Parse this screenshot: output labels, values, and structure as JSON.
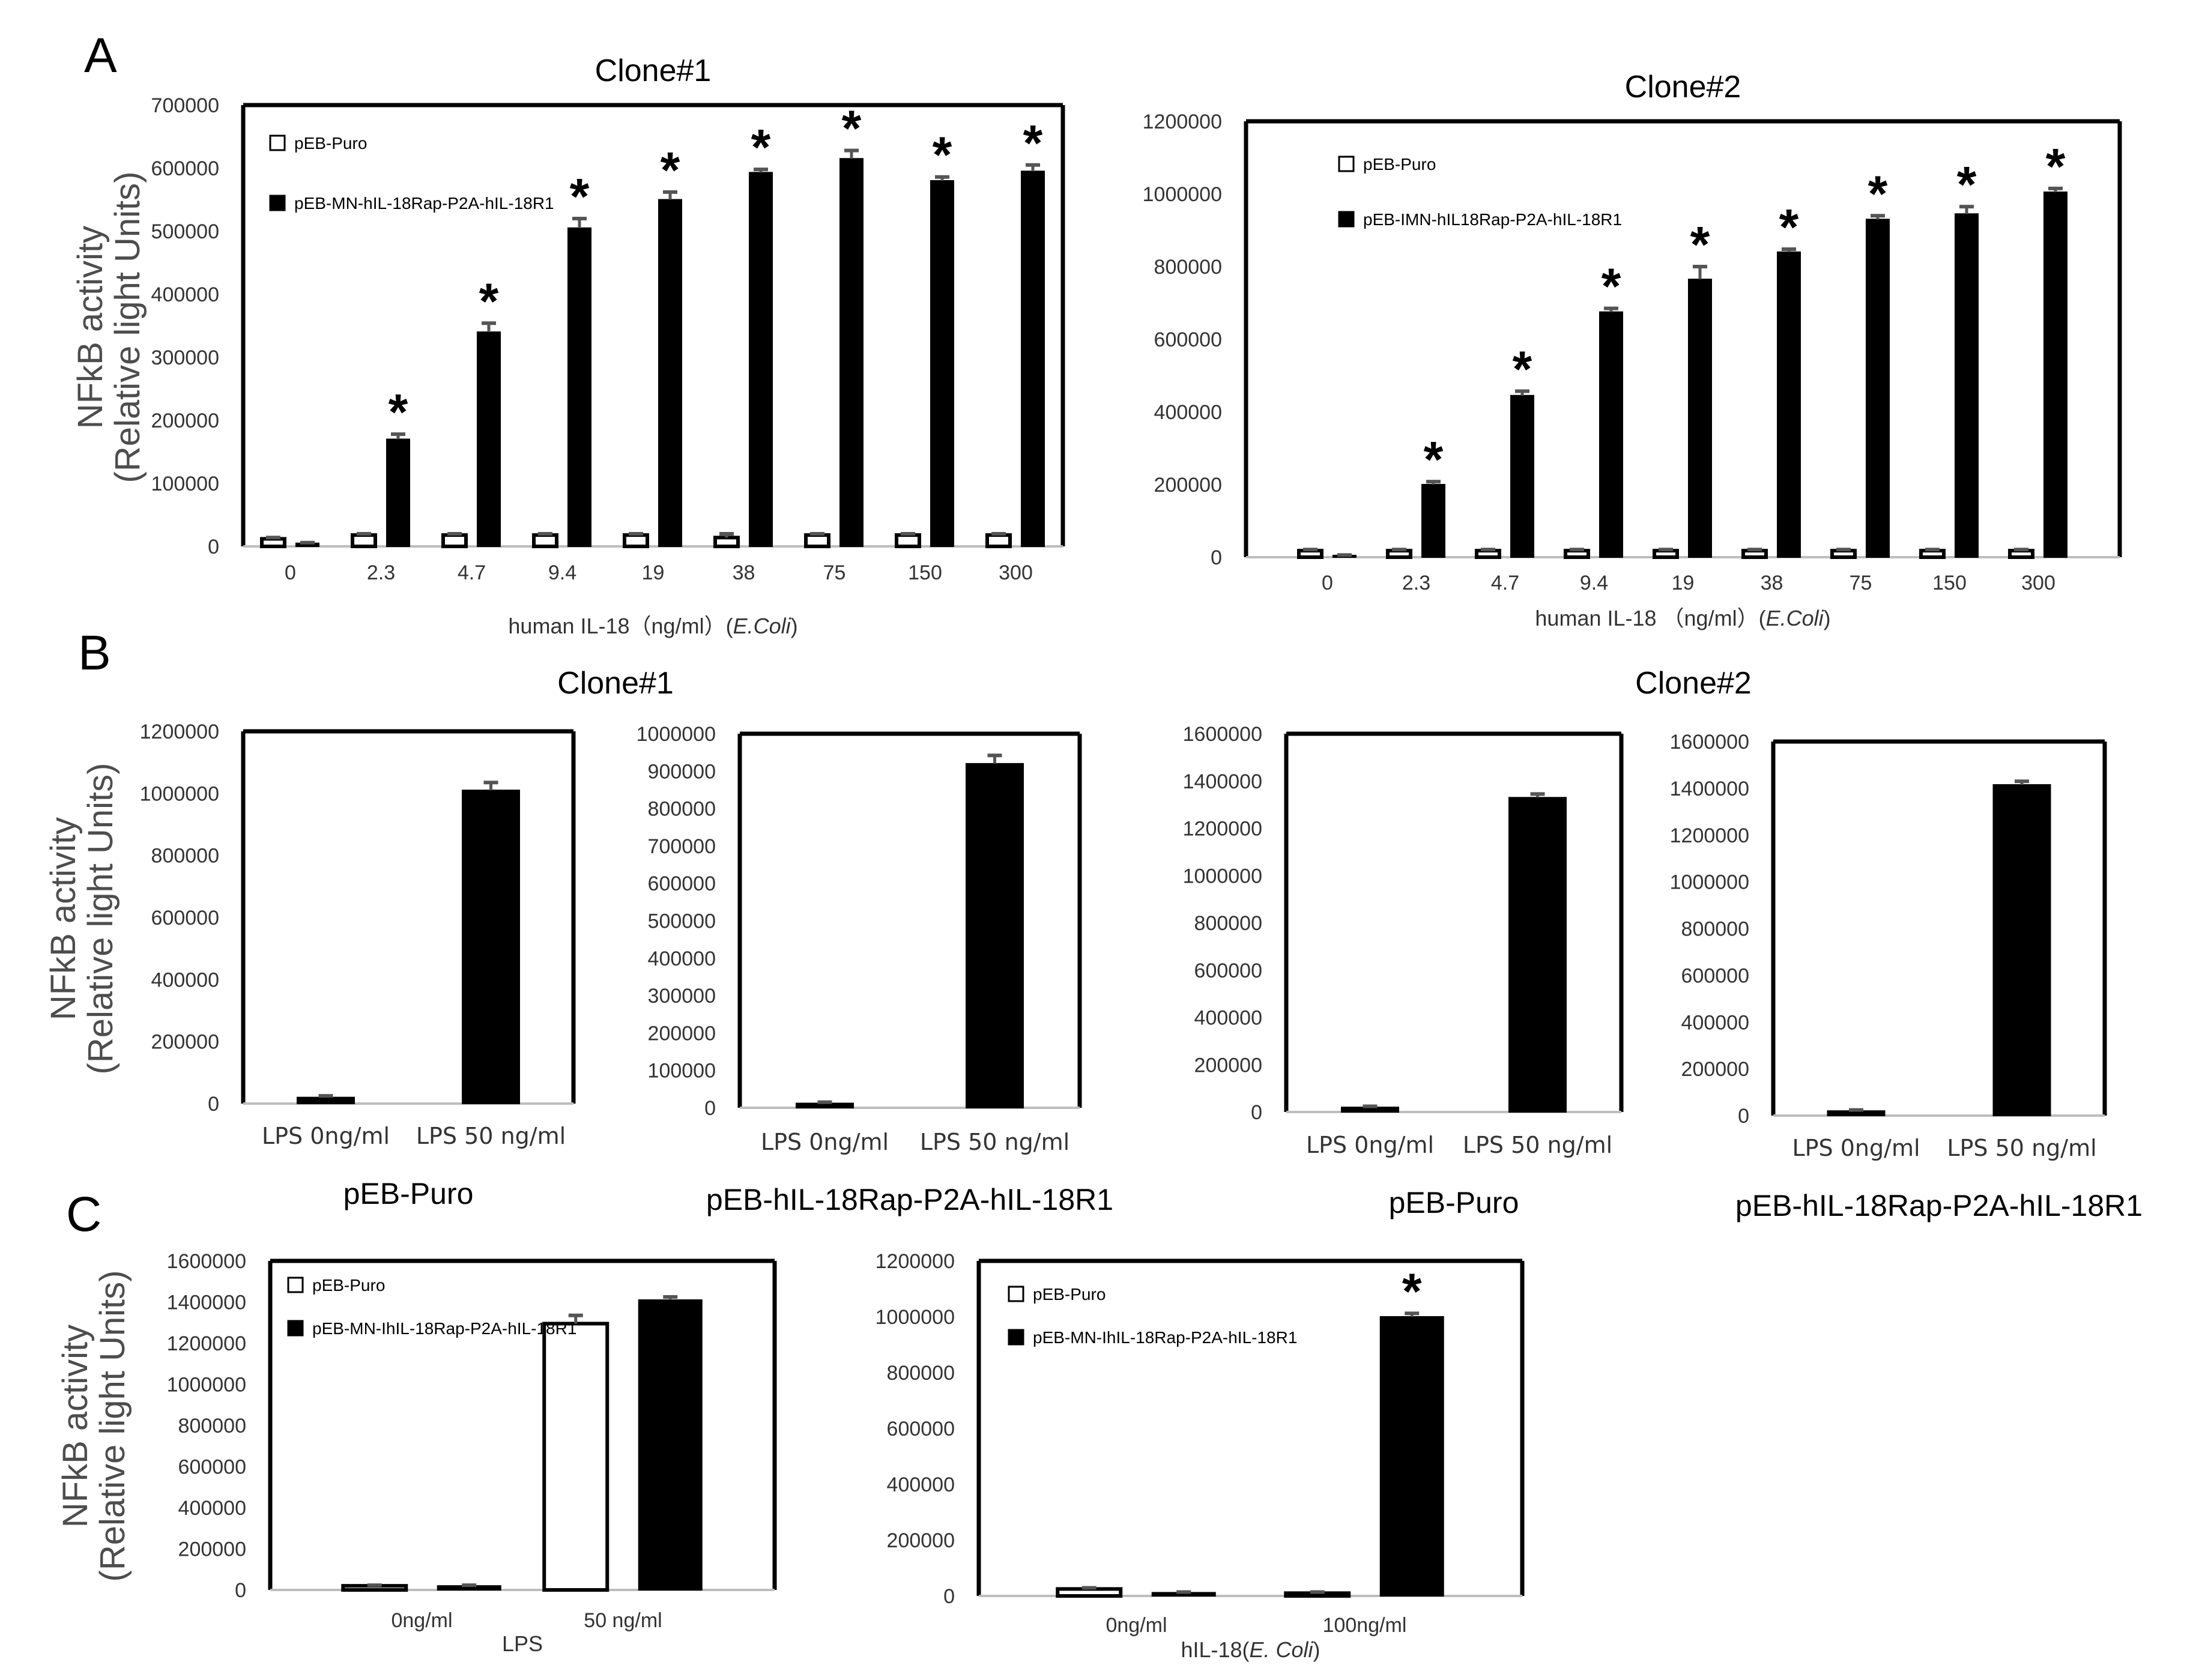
{
  "panel_labels": [
    "A",
    "B",
    "C"
  ],
  "colors": {
    "frame": "#000000",
    "filled": "#000000",
    "open": "#ffffff",
    "error": "#555555",
    "baseline": "#bdbdbd"
  },
  "shared_ylabel": {
    "line1": "NFkB activity",
    "line2": "(Relative light Units)"
  },
  "chart_data": [
    {
      "id": "A1",
      "type": "bar",
      "title": "Clone#1",
      "categories": [
        "0",
        "2.3",
        "4.7",
        "9.4",
        "19",
        "38",
        "75",
        "150",
        "300"
      ],
      "xlabel_parts": [
        "human  IL-18（ng/ml）(",
        "E.Coli",
        ")"
      ],
      "ylim": [
        0,
        700000
      ],
      "yticks": [
        "0",
        "100000",
        "200000",
        "300000",
        "400000",
        "500000",
        "600000",
        "700000"
      ],
      "series": [
        {
          "name": "pEB-Puro",
          "fill": "open",
          "values": [
            12000,
            18000,
            18000,
            18000,
            18000,
            14000,
            18000,
            18000,
            18000
          ],
          "err": [
            2000,
            2000,
            2000,
            2000,
            2000,
            6000,
            2000,
            2000,
            2000
          ]
        },
        {
          "name": "pEB-MN-hIL-18Rap-P2A-hIL-18R1",
          "fill": "filled",
          "values": [
            5000,
            170000,
            340000,
            505000,
            550000,
            593000,
            615000,
            580000,
            595000
          ],
          "err": [
            1000,
            8000,
            14000,
            15000,
            12000,
            5000,
            13000,
            6000,
            10000
          ]
        }
      ],
      "significant": [
        false,
        true,
        true,
        true,
        true,
        true,
        true,
        true,
        true
      ]
    },
    {
      "id": "A2",
      "type": "bar",
      "title": "Clone#2",
      "categories": [
        "0",
        "2.3",
        "4.7",
        "9.4",
        "19",
        "38",
        "75",
        "150",
        "300"
      ],
      "xlabel_parts": [
        "human  IL-18 （ng/ml）(",
        "E.Coli",
        ")"
      ],
      "ylim": [
        0,
        1200000
      ],
      "yticks": [
        "0",
        "200000",
        "400000",
        "600000",
        "800000",
        "1000000",
        "1200000"
      ],
      "series": [
        {
          "name": "pEB-Puro",
          "fill": "open",
          "values": [
            18000,
            18000,
            18000,
            18000,
            18000,
            18000,
            18000,
            18000,
            18000
          ],
          "err": [
            3000,
            3000,
            3000,
            3000,
            3000,
            3000,
            3000,
            3000,
            3000
          ]
        },
        {
          "name": "pEB-IMN-hIL18Rap-P2A-hIL-18R1",
          "fill": "filled",
          "values": [
            5000,
            200000,
            445000,
            675000,
            765000,
            840000,
            930000,
            945000,
            1005000
          ],
          "err": [
            1000,
            8000,
            12000,
            10000,
            35000,
            8000,
            10000,
            20000,
            10000
          ]
        }
      ],
      "significant": [
        false,
        true,
        true,
        true,
        true,
        true,
        true,
        true,
        true
      ]
    },
    {
      "id": "B1",
      "type": "bar",
      "group_title": "Clone#1",
      "caption": "pEB-Puro",
      "categories": [
        "LPS 0ng/ml",
        "LPS 50 ng/ml"
      ],
      "ylim": [
        0,
        1200000
      ],
      "yticks": [
        "0",
        "200000",
        "400000",
        "600000",
        "800000",
        "1000000",
        "1200000"
      ],
      "values": [
        20000,
        1010000
      ],
      "err": [
        5000,
        25000
      ]
    },
    {
      "id": "B2",
      "type": "bar",
      "caption": "pEB-hIL-18Rap-P2A-hIL-18R1",
      "categories": [
        "LPS 0ng/ml",
        "LPS 50 ng/ml"
      ],
      "ylim": [
        0,
        1000000
      ],
      "yticks": [
        "0",
        "100000",
        "200000",
        "300000",
        "400000",
        "500000",
        "600000",
        "700000",
        "800000",
        "900000",
        "1000000"
      ],
      "values": [
        12000,
        920000
      ],
      "err": [
        3000,
        22000
      ]
    },
    {
      "id": "B3",
      "type": "bar",
      "group_title": "Clone#2",
      "caption": "pEB-Puro",
      "categories": [
        "LPS 0ng/ml",
        "LPS 50 ng/ml"
      ],
      "ylim": [
        0,
        1600000
      ],
      "yticks": [
        "0",
        "200000",
        "400000",
        "600000",
        "800000",
        "1000000",
        "1200000",
        "1400000",
        "1600000"
      ],
      "values": [
        20000,
        1330000
      ],
      "err": [
        4000,
        15000
      ]
    },
    {
      "id": "B4",
      "type": "bar",
      "caption": "pEB-hIL-18Rap-P2A-hIL-18R1",
      "categories": [
        "LPS 0ng/ml",
        "LPS 50 ng/ml"
      ],
      "ylim": [
        0,
        1600000
      ],
      "yticks": [
        "0",
        "200000",
        "400000",
        "600000",
        "800000",
        "1000000",
        "1200000",
        "1400000",
        "1600000"
      ],
      "values": [
        20000,
        1415000
      ],
      "err": [
        4000,
        15000
      ]
    },
    {
      "id": "C1",
      "type": "bar",
      "categories": [
        "0ng/ml",
        "50 ng/ml"
      ],
      "xlabel_parts": [
        "LPS",
        "",
        ""
      ],
      "ylim": [
        0,
        1600000
      ],
      "yticks": [
        "0",
        "200000",
        "400000",
        "600000",
        "800000",
        "1000000",
        "1200000",
        "1400000",
        "1600000"
      ],
      "series": [
        {
          "name": "pEB-Puro",
          "fill": "open",
          "values": [
            20000,
            1295000
          ],
          "err": [
            3000,
            40000
          ]
        },
        {
          "name": "pEB-MN-IhIL-18Rap-P2A-hIL-18R1",
          "fill": "filled",
          "values": [
            20000,
            1410000
          ],
          "err": [
            3000,
            15000
          ]
        }
      ],
      "significant": [
        false,
        false
      ]
    },
    {
      "id": "C2",
      "type": "bar",
      "categories": [
        "0ng/ml",
        "100ng/ml"
      ],
      "xlabel_parts": [
        "hIL-18(",
        "E. Coli",
        ")"
      ],
      "ylim": [
        0,
        1200000
      ],
      "yticks": [
        "0",
        "200000",
        "400000",
        "600000",
        "800000",
        "1000000",
        "1200000"
      ],
      "series": [
        {
          "name": "pEB-Puro",
          "fill": "open",
          "values": [
            25000,
            10000
          ],
          "err": [
            4000,
            4000
          ]
        },
        {
          "name": "pEB-MN-IhIL-18Rap-P2A-hIL-18R1",
          "fill": "filled",
          "values": [
            12000,
            1000000
          ],
          "err": [
            2000,
            12000
          ]
        }
      ],
      "significant": [
        false,
        true
      ]
    }
  ]
}
